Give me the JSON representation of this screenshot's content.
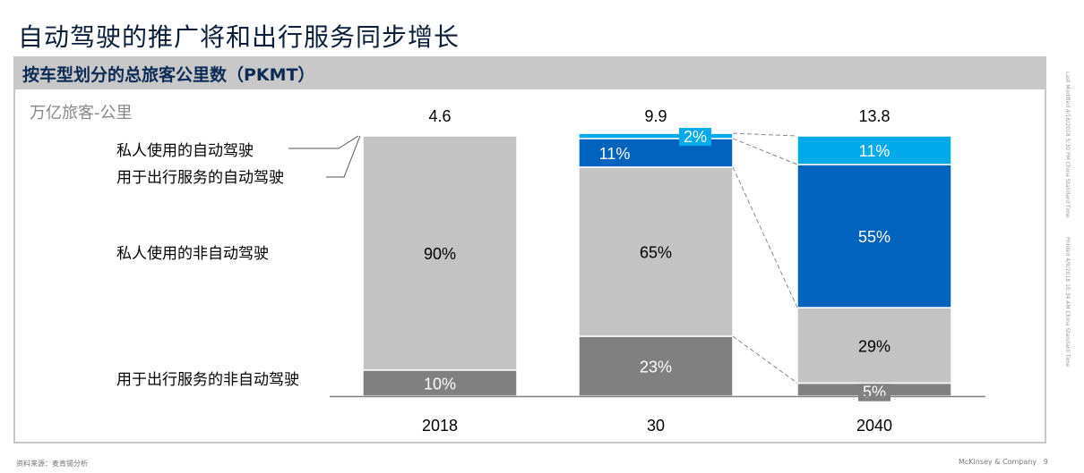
{
  "title": "自动驾驶的推广将和出行服务同步增长",
  "subtitle": "按车型划分的总旅客公里数（PKMT）",
  "side_notes": [
    "Last Modified 4/16/2018 5:30 PM China Standard Time",
    "Printed 4/9/2018 10:34 AM China Standard Time"
  ],
  "footer": {
    "source": "资料来源：麦肯锡分析",
    "company": "McKinsey & Company",
    "page": "9"
  },
  "chart_data": {
    "type": "bar",
    "stacked": "100%",
    "ylabel": "万亿旅客-公里",
    "categories": [
      "2018",
      "30",
      "2040"
    ],
    "totals": [
      "4.6",
      "9.9",
      "13.8"
    ],
    "series": [
      {
        "name": "用于出行服务的非自动驾驶",
        "color": "#808080",
        "values": [
          10,
          23,
          5
        ]
      },
      {
        "name": "私人使用的非自动驾驶",
        "color": "#c3c3c3",
        "values": [
          90,
          65,
          29
        ]
      },
      {
        "name": "用于出行服务的自动驾驶",
        "color": "#0064be",
        "values": [
          0,
          11,
          55
        ]
      },
      {
        "name": "私人使用的自动驾驶",
        "color": "#00aaeb",
        "values": [
          0,
          2,
          11
        ]
      }
    ],
    "legend_placement": "left",
    "grid": false
  }
}
